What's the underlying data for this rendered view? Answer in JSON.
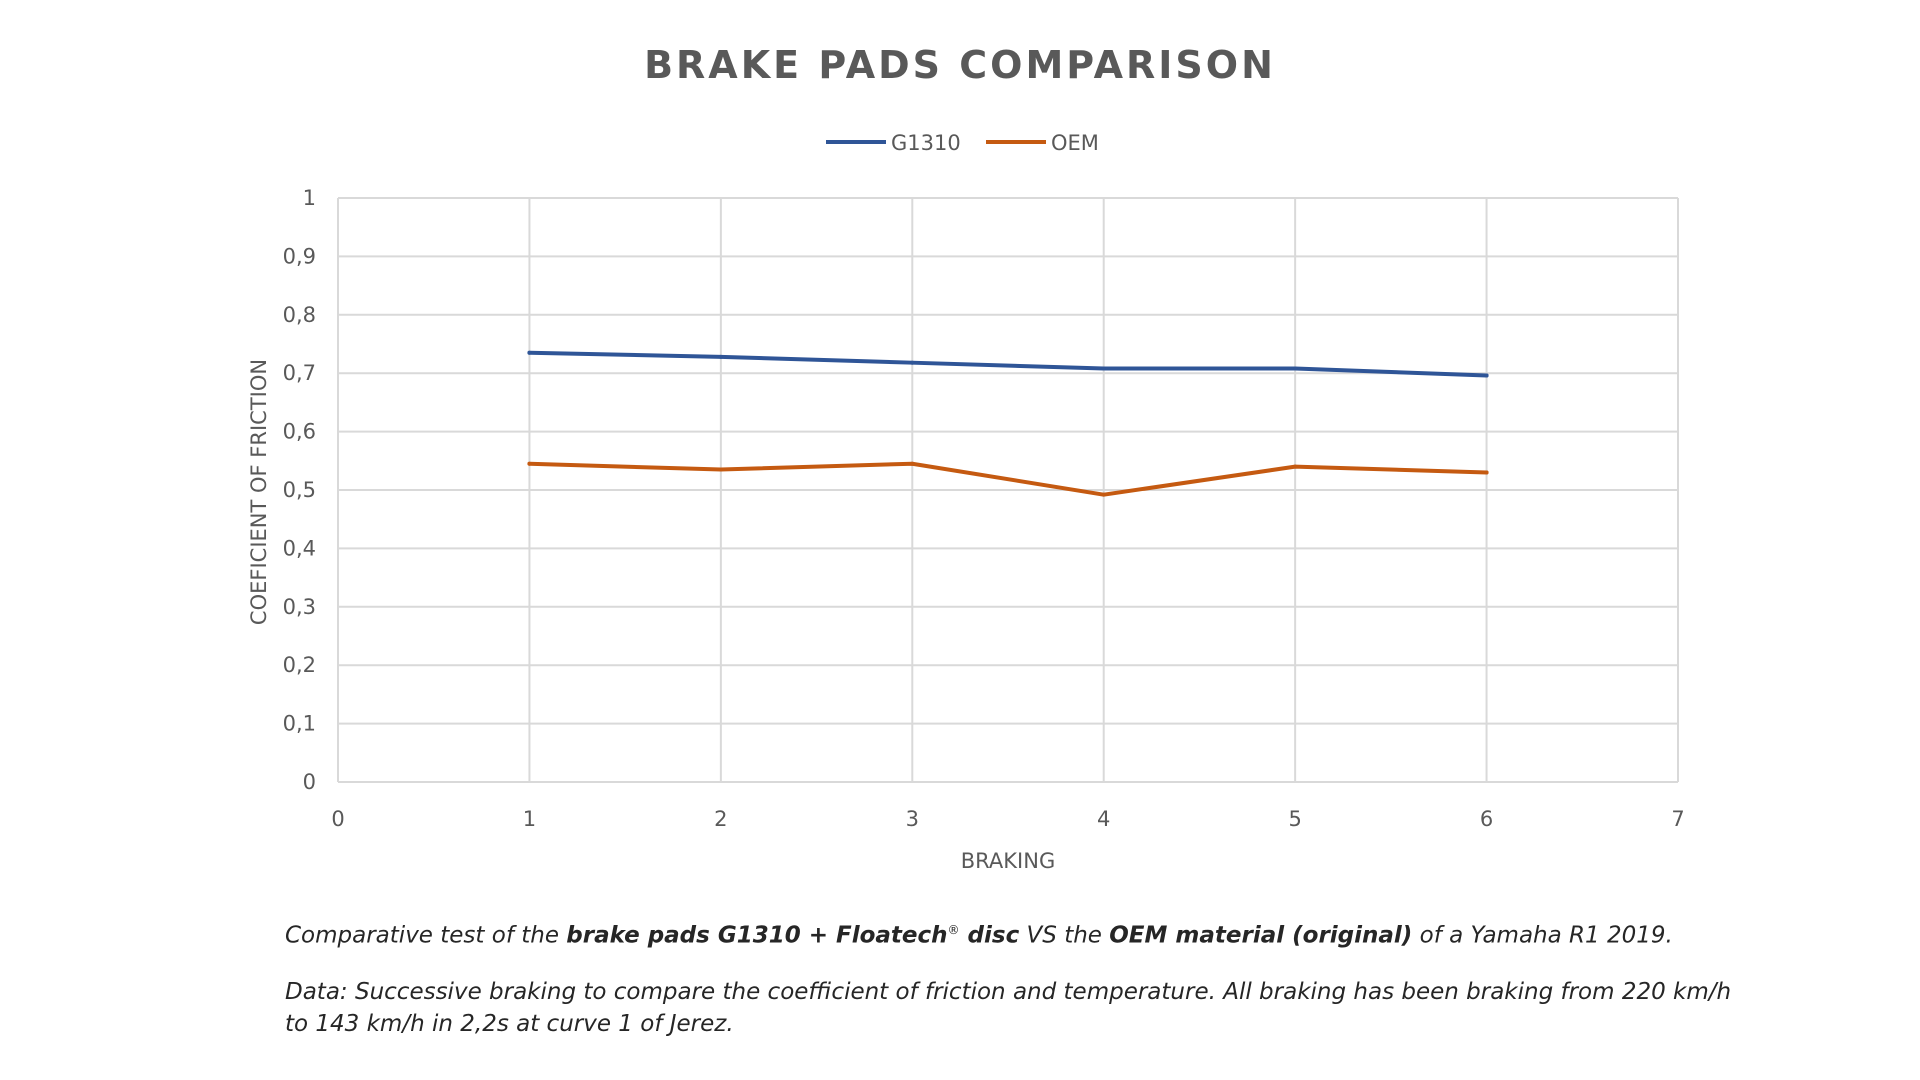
{
  "chart_data": {
    "type": "line",
    "title": "BRAKE PADS COMPARISON",
    "xlabel": "BRAKING",
    "ylabel": "COEFICIENT OF FRICTION",
    "xlim": [
      0,
      7
    ],
    "ylim": [
      0,
      1
    ],
    "x_ticks": [
      "0",
      "1",
      "2",
      "3",
      "4",
      "5",
      "6",
      "7"
    ],
    "y_ticks": [
      "0",
      "0,1",
      "0,2",
      "0,3",
      "0,4",
      "0,5",
      "0,6",
      "0,7",
      "0,8",
      "0,9",
      "1"
    ],
    "grid": true,
    "legend_position": "top",
    "series": [
      {
        "name": "G1310",
        "color": "#2f5597",
        "x": [
          1,
          2,
          3,
          4,
          5,
          6
        ],
        "values": [
          0.735,
          0.728,
          0.718,
          0.708,
          0.708,
          0.696
        ]
      },
      {
        "name": "OEM",
        "color": "#c55a11",
        "x": [
          1,
          2,
          3,
          4,
          5,
          6
        ],
        "values": [
          0.545,
          0.535,
          0.545,
          0.492,
          0.54,
          0.53
        ]
      }
    ]
  },
  "caption": {
    "line1": {
      "part1": "Comparative test of the ",
      "bold1": "brake pads G1310 + Floatech",
      "sup": "®",
      "bold2": " disc",
      "part2": " VS the ",
      "bold3": "OEM material (original)",
      "part3": " of a Yamaha R1 2019."
    },
    "line2": "Data: Successive braking to compare the coefficient of friction and temperature. All braking has been braking from 220 km/h to 143 km/h in 2,2s at curve 1 of Jerez."
  }
}
